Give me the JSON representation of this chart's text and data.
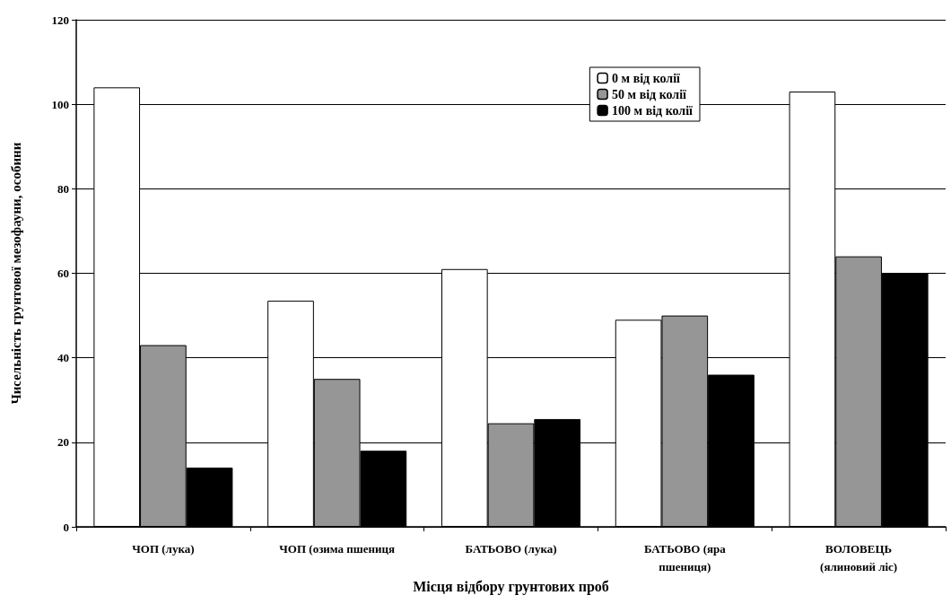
{
  "chart_data": {
    "type": "bar",
    "xlabel": "Місця відбору грунтових проб",
    "ylabel": "Чисельність грунтової мезофауни, особини",
    "categories": [
      "ЧОП (лука)",
      "ЧОП (озима пшениця",
      "БАТЬОВО (лука)",
      "БАТЬОВО (яра\nпшениця)",
      "ВОЛОВЕЦЬ\n(ялиновий ліс)"
    ],
    "series": [
      {
        "name": "0 м від колії",
        "color": "#ffffff",
        "values": [
          104,
          53.5,
          61,
          49,
          103
        ]
      },
      {
        "name": "50 м від колії",
        "color": "#969696",
        "values": [
          43,
          35,
          24.5,
          50,
          64
        ]
      },
      {
        "name": "100 м від колії",
        "color": "#000000",
        "values": [
          14,
          18,
          25.5,
          36,
          60
        ]
      }
    ],
    "ylim": [
      0,
      120
    ],
    "yticks": [
      0,
      20,
      40,
      60,
      80,
      100,
      120
    ],
    "grid": "y",
    "legend": "top right"
  }
}
